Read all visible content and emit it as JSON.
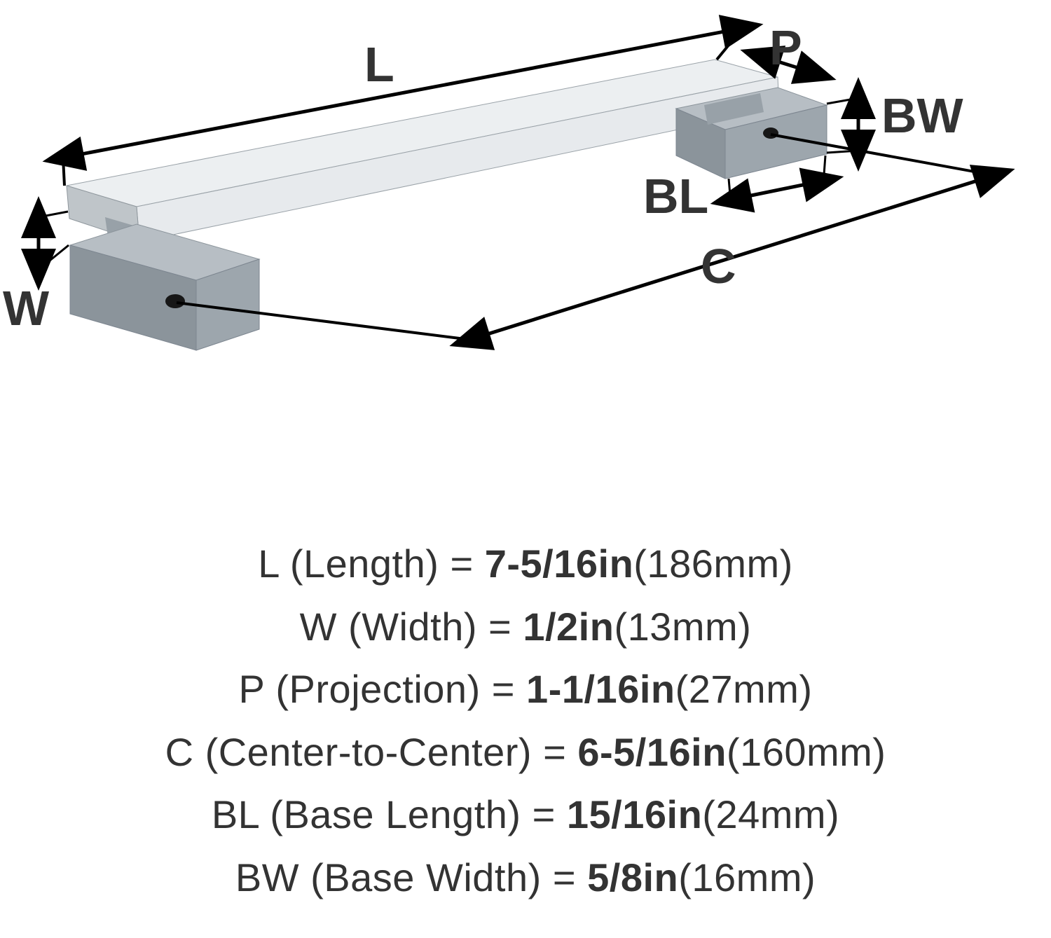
{
  "diagram": {
    "type": "infographic",
    "background_color": "#ffffff",
    "label_color": "#333333",
    "label_fontsize_pt": 52,
    "arrow_stroke": "#000000",
    "arrow_stroke_width": 5,
    "arrowhead_size": 22,
    "bar_fill_top": "#eceff1",
    "bar_fill_side": "#bfc5c9",
    "bar_edge": "#7d8a92",
    "foot_top": "#b7bec4",
    "foot_front": "#9da6ad",
    "foot_side": "#8b949b",
    "hole_color": "#171717",
    "labels": {
      "L": "L",
      "W": "W",
      "P": "P",
      "C": "C",
      "BL": "BL",
      "BW": "BW"
    }
  },
  "specs": [
    {
      "code": "L",
      "name": "Length",
      "imperial": "7-5/16in",
      "metric": "186mm"
    },
    {
      "code": "W",
      "name": "Width",
      "imperial": "1/2in",
      "metric": "13mm"
    },
    {
      "code": "P",
      "name": "Projection",
      "imperial": "1-1/16in",
      "metric": "27mm"
    },
    {
      "code": "C",
      "name": "Center-to-Center",
      "imperial": "6-5/16in",
      "metric": "160mm"
    },
    {
      "code": "BL",
      "name": "Base Length",
      "imperial": "15/16in",
      "metric": "24mm"
    },
    {
      "code": "BW",
      "name": "Base Width",
      "imperial": "5/8in",
      "metric": "16mm"
    }
  ]
}
